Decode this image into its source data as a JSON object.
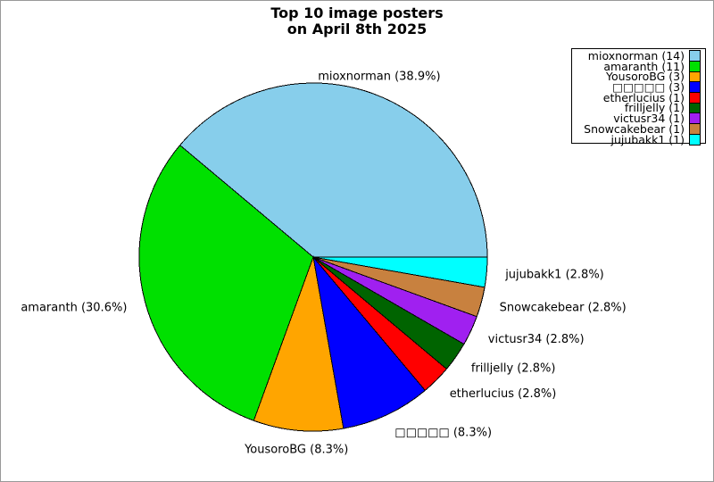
{
  "page": {
    "background": "#FFFFFF",
    "frame_border_color": "#999999"
  },
  "title": {
    "line1": "Top 10 image posters",
    "line2": "on April 8th 2025"
  },
  "chart_data": {
    "type": "pie",
    "title": "Top 10 image posters on April 8th 2025",
    "total": 36,
    "start_angle_deg": 0,
    "direction": "counterclockwise",
    "legend": {
      "position": "top-right",
      "format": "label (count)"
    },
    "slices": [
      {
        "id": "mioxnorman",
        "label": "mioxnorman",
        "count": 14,
        "pct_label": "38.9%",
        "color": "#87CEEB"
      },
      {
        "id": "amaranth",
        "label": "amaranth",
        "count": 11,
        "pct_label": "30.6%",
        "color": "#00E000"
      },
      {
        "id": "yousorobg",
        "label": "YousoroBG",
        "count": 3,
        "pct_label": "8.3%",
        "color": "#FFA500"
      },
      {
        "id": "unknown-glyph-user",
        "label": "□□□□□",
        "count": 3,
        "pct_label": "8.3%",
        "color": "#0000FF"
      },
      {
        "id": "etherlucius",
        "label": "etherlucius",
        "count": 1,
        "pct_label": "2.8%",
        "color": "#FF0000"
      },
      {
        "id": "frilljelly",
        "label": "frilljelly",
        "count": 1,
        "pct_label": "2.8%",
        "color": "#006400"
      },
      {
        "id": "victusr34",
        "label": "victusr34",
        "count": 1,
        "pct_label": "2.8%",
        "color": "#A020F0"
      },
      {
        "id": "snowcakebear",
        "label": "Snowcakebear",
        "count": 1,
        "pct_label": "2.8%",
        "color": "#C8813F"
      },
      {
        "id": "jujubakk1",
        "label": "jujubakk1",
        "count": 1,
        "pct_label": "2.8%",
        "color": "#00FFFF"
      }
    ]
  }
}
